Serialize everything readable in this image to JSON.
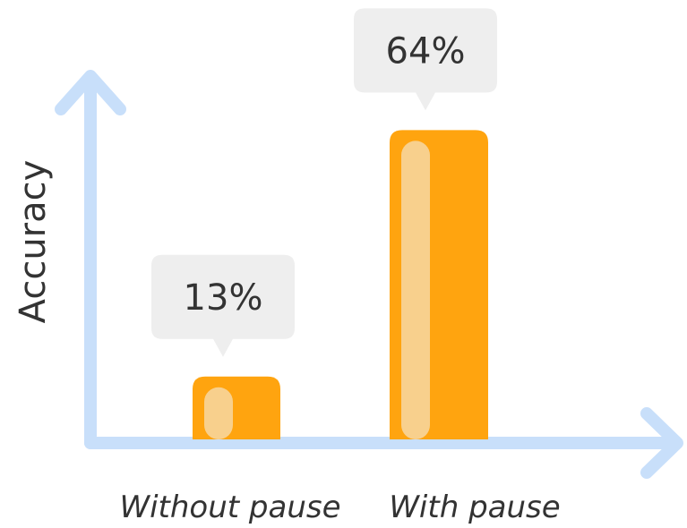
{
  "chart_data": {
    "type": "bar",
    "categories": [
      "Without pause",
      "With pause"
    ],
    "values": [
      13,
      64
    ],
    "value_labels": [
      "13%",
      "64%"
    ],
    "ylabel": "Accuracy",
    "ylim": [
      0,
      100
    ],
    "grid": false,
    "legend": "none"
  },
  "colors": {
    "axis": "#c8dffa",
    "bar": "#ffa40f",
    "bar_highlight": "#f8d08d",
    "callout": "#eeeeee",
    "text": "#333333"
  }
}
